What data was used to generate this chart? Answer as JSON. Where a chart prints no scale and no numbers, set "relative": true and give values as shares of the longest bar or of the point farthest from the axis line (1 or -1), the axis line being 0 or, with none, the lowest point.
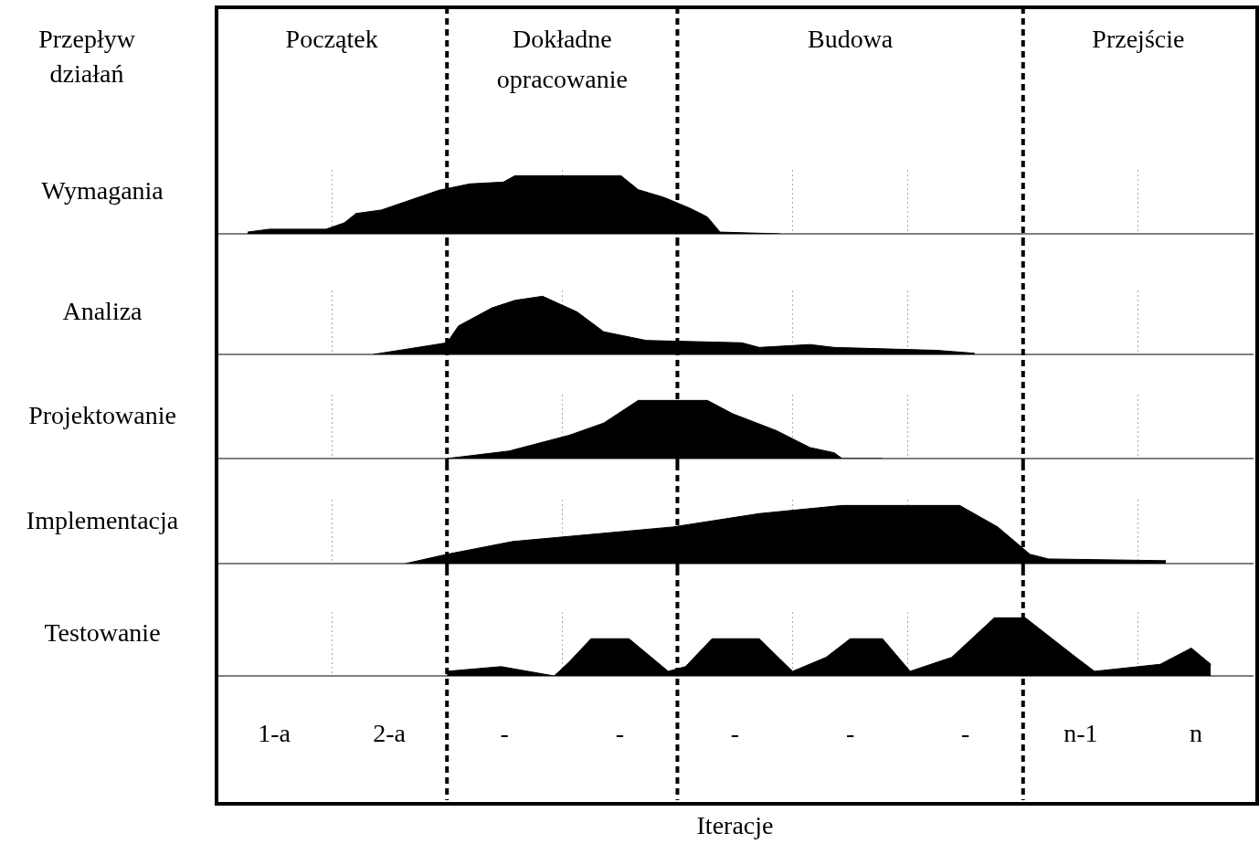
{
  "chart_data": [
    {
      "type": "area",
      "relative": true,
      "xlim": [
        0,
        9
      ],
      "annotations": [
        "Przepływ działań",
        "Początek",
        "Dokładne opracowanie",
        "Budowa",
        "Przejście"
      ],
      "xticks": [
        {
          "value": 1,
          "label": null
        },
        {
          "value": 3,
          "label": null
        },
        {
          "value": 5,
          "label": null
        },
        {
          "value": 6,
          "label": null
        },
        {
          "value": 8,
          "label": null
        }
      ],
      "tick_labels": false,
      "grid": "x",
      "ref_lines": [
        {
          "axis": "x",
          "value": 2,
          "line_style": "dashed"
        },
        {
          "axis": "x",
          "value": 4,
          "line_style": "dashed"
        },
        {
          "axis": "x",
          "value": 7,
          "line_style": "dashed"
        }
      ],
      "series": [
        {
          "name": "Wymagania",
          "color": "#000000",
          "x": [
            0.27,
            0.46,
            0.95,
            1.11,
            1.21,
            1.43,
            1.71,
            1.93,
            2.2,
            2.49,
            2.59,
            3.51,
            3.66,
            3.88,
            4.11,
            4.26,
            4.37,
            4.89
          ],
          "values": [
            0.03,
            0.08,
            0.08,
            0.19,
            0.35,
            0.41,
            0.6,
            0.75,
            0.86,
            0.89,
            1,
            1,
            0.76,
            0.63,
            0.44,
            0.29,
            0.03,
            0
          ]
        }
      ]
    },
    {
      "type": "area",
      "relative": true,
      "xlim": [
        0,
        9
      ],
      "xticks": [
        {
          "value": 1,
          "label": null
        },
        {
          "value": 3,
          "label": null
        },
        {
          "value": 5,
          "label": null
        },
        {
          "value": 6,
          "label": null
        },
        {
          "value": 8,
          "label": null
        }
      ],
      "tick_labels": false,
      "grid": "x",
      "ref_lines": [
        {
          "axis": "x",
          "value": 2,
          "line_style": "dashed"
        },
        {
          "axis": "x",
          "value": 4,
          "line_style": "dashed"
        },
        {
          "axis": "x",
          "value": 7,
          "line_style": "dashed"
        }
      ],
      "series": [
        {
          "name": "Analiza",
          "color": "#000000",
          "x": [
            1.36,
            1.68,
            2,
            2.1,
            2.39,
            2.59,
            2.83,
            3.13,
            3.36,
            3.73,
            4.56,
            4.71,
            5.15,
            5.36,
            6.25,
            6.58
          ],
          "values": [
            0,
            0.1,
            0.2,
            0.49,
            0.8,
            0.93,
            1,
            0.73,
            0.39,
            0.24,
            0.2,
            0.12,
            0.17,
            0.12,
            0.07,
            0.02
          ]
        }
      ]
    },
    {
      "type": "area",
      "relative": true,
      "xlim": [
        0,
        9
      ],
      "xticks": [
        {
          "value": 1,
          "label": null
        },
        {
          "value": 3,
          "label": null
        },
        {
          "value": 5,
          "label": null
        },
        {
          "value": 6,
          "label": null
        },
        {
          "value": 8,
          "label": null
        }
      ],
      "tick_labels": false,
      "grid": "x",
      "ref_lines": [
        {
          "axis": "x",
          "value": 2,
          "line_style": "dashed"
        },
        {
          "axis": "x",
          "value": 4,
          "line_style": "dashed"
        },
        {
          "axis": "x",
          "value": 7,
          "line_style": "dashed"
        }
      ],
      "series": [
        {
          "name": "Projektowanie",
          "color": "#000000",
          "x": [
            2,
            2.54,
            3.06,
            3.36,
            3.66,
            4.26,
            4.48,
            4.86,
            5.15,
            5.36,
            5.43,
            5.78
          ],
          "values": [
            0,
            0.13,
            0.4,
            0.61,
            1,
            1,
            0.77,
            0.48,
            0.19,
            0.1,
            0,
            0
          ]
        }
      ]
    },
    {
      "type": "area",
      "relative": true,
      "xlim": [
        0,
        9
      ],
      "xticks": [
        {
          "value": 1,
          "label": null
        },
        {
          "value": 3,
          "label": null
        },
        {
          "value": 5,
          "label": null
        },
        {
          "value": 6,
          "label": null
        },
        {
          "value": 8,
          "label": null
        }
      ],
      "tick_labels": false,
      "grid": "x",
      "ref_lines": [
        {
          "axis": "x",
          "value": 2,
          "line_style": "dashed"
        },
        {
          "axis": "x",
          "value": 4,
          "line_style": "dashed"
        },
        {
          "axis": "x",
          "value": 7,
          "line_style": "dashed"
        }
      ],
      "series": [
        {
          "name": "Implementacja",
          "color": "#000000",
          "x": [
            1.64,
            2,
            2.57,
            3.96,
            4.71,
            5.43,
            6.45,
            6.78,
            7.06,
            7.22,
            8.24
          ],
          "values": [
            0,
            0.16,
            0.38,
            0.63,
            0.86,
            1,
            1,
            0.63,
            0.16,
            0.08,
            0.05
          ]
        }
      ]
    },
    {
      "type": "area",
      "relative": true,
      "xlabel": "Iteracje",
      "xlim": [
        0,
        9
      ],
      "xticks": [
        {
          "value": 0.5,
          "label": "1-a"
        },
        {
          "value": 1,
          "label": null
        },
        {
          "value": 1.5,
          "label": "2-a"
        },
        {
          "value": 2.5,
          "label": "-"
        },
        {
          "value": 3,
          "label": null
        },
        {
          "value": 3.5,
          "label": "-"
        },
        {
          "value": 4.5,
          "label": "-"
        },
        {
          "value": 5,
          "label": null
        },
        {
          "value": 5.5,
          "label": "-"
        },
        {
          "value": 6,
          "label": null
        },
        {
          "value": 6.5,
          "label": "-"
        },
        {
          "value": 7.5,
          "label": "n-1"
        },
        {
          "value": 8,
          "label": null
        },
        {
          "value": 8.5,
          "label": "n"
        }
      ],
      "tick_labels": "x",
      "grid": "x",
      "ref_lines": [
        {
          "axis": "x",
          "value": 2,
          "line_style": "dashed"
        },
        {
          "axis": "x",
          "value": 4,
          "line_style": "dashed"
        },
        {
          "axis": "x",
          "value": 7,
          "line_style": "dashed"
        }
      ],
      "series": [
        {
          "name": "Testowanie",
          "color": "#000000",
          "x": [
            2,
            2.47,
            2.93,
            3.06,
            3.25,
            3.58,
            3.92,
            4.07,
            4.3,
            4.71,
            5,
            5.29,
            5.5,
            5.78,
            6.02,
            6.38,
            6.75,
            7.02,
            7.46,
            7.62,
            8.19,
            8.46,
            8.63
          ],
          "values": [
            0.08,
            0.16,
            0,
            0.24,
            0.64,
            0.64,
            0.08,
            0.16,
            0.64,
            0.64,
            0.08,
            0.32,
            0.64,
            0.64,
            0.08,
            0.32,
            1,
            1,
            0.32,
            0.08,
            0.2,
            0.48,
            0.2
          ]
        }
      ]
    }
  ]
}
